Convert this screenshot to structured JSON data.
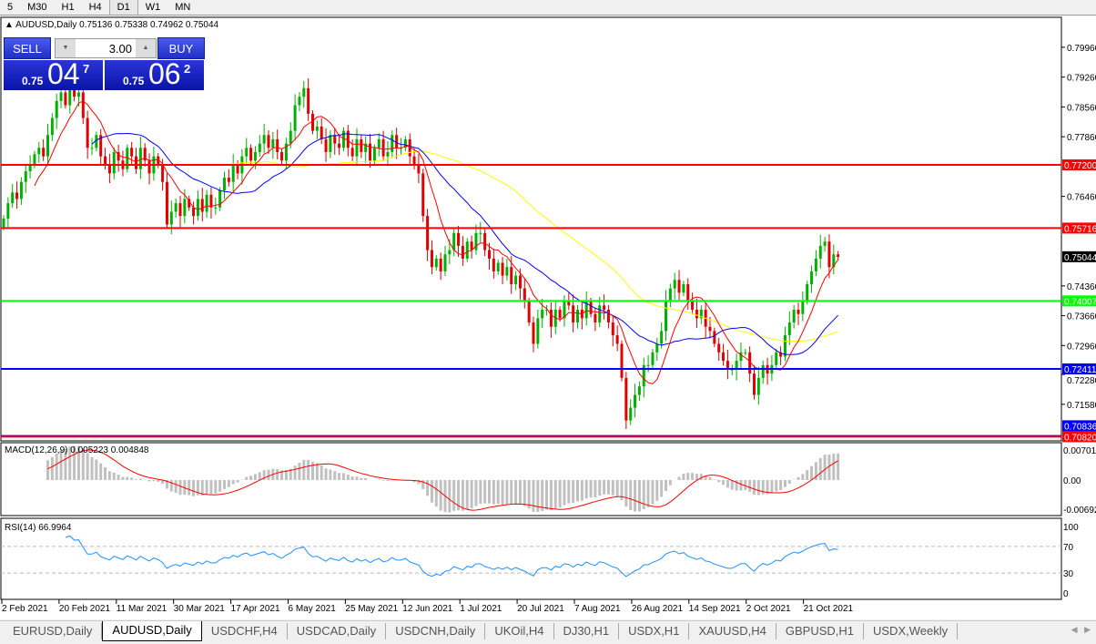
{
  "timeframes": [
    "5",
    "M30",
    "H1",
    "H4",
    "D1",
    "W1",
    "MN"
  ],
  "selected_timeframe": "D1",
  "chart_header": {
    "symbol_title": "AUDUSD,Daily",
    "ohlc": "0.75136 0.75338 0.74962 0.75044"
  },
  "trade_panel": {
    "sell_label": "SELL",
    "buy_label": "BUY",
    "lot": "3.00",
    "sell": {
      "small": "0.75",
      "big": "04",
      "pip": "7"
    },
    "buy": {
      "small": "0.75",
      "big": "06",
      "pip": "2"
    }
  },
  "indicators": {
    "macd_label": "MACD(12,26,9) 0.005223 0.004848",
    "rsi_label": "RSI(14) 66.9964"
  },
  "tabs": [
    "EURUSD,Daily",
    "AUDUSD,Daily",
    "USDCHF,H4",
    "USDCAD,Daily",
    "USDCNH,Daily",
    "UKOil,H4",
    "DJ30,H1",
    "USDX,H1",
    "XAUUSD,H4",
    "GBPUSD,H1",
    "USDX,Weekly"
  ],
  "active_tab": "AUDUSD,Daily",
  "colors": {
    "bull": "#00b000",
    "bear": "#e00000",
    "ma_fast": "#ff0000",
    "ma_mid": "#0000ff",
    "ma_slow": "#ffff00",
    "macd_hist": "#c0c0c0",
    "macd_signal": "#ff0000",
    "rsi": "#1e90ff"
  },
  "chart_data": {
    "type": "candlestick",
    "symbol": "AUDUSD",
    "timeframe": "Daily",
    "y_ticks": [
      "0.79960",
      "0.79260",
      "0.78560",
      "0.77860",
      "0.76460",
      "0.74360",
      "0.73660",
      "0.72960",
      "0.72280",
      "0.71580"
    ],
    "x_ticks": [
      "2 Feb 2021",
      "20 Feb 2021",
      "11 Mar 2021",
      "30 Mar 2021",
      "17 Apr 2021",
      "6 May 2021",
      "25 May 2021",
      "12 Jun 2021",
      "1 Jul 2021",
      "20 Jul 2021",
      "7 Aug 2021",
      "26 Aug 2021",
      "14 Sep 2021",
      "2 Oct 2021",
      "21 Oct 2021"
    ],
    "current_price": "0.75044",
    "hlines": [
      {
        "price": "0.77200",
        "color": "#ff0000"
      },
      {
        "price": "0.75716",
        "color": "#ff0000"
      },
      {
        "price": "0.74007",
        "color": "#00ff00"
      },
      {
        "price": "0.72411",
        "color": "#0000ff"
      },
      {
        "price": "0.70836",
        "color": "#0000ff"
      },
      {
        "price": "0.70820",
        "color": "#ff0000"
      }
    ],
    "closes": [
      0.7594,
      0.763,
      0.7655,
      0.764,
      0.768,
      0.7705,
      0.772,
      0.7745,
      0.776,
      0.774,
      0.779,
      0.783,
      0.787,
      0.789,
      0.786,
      0.791,
      0.788,
      0.789,
      0.783,
      0.776,
      0.776,
      0.779,
      0.774,
      0.772,
      0.77,
      0.775,
      0.773,
      0.771,
      0.776,
      0.774,
      0.771,
      0.776,
      0.773,
      0.77,
      0.774,
      0.772,
      0.768,
      0.758,
      0.761,
      0.763,
      0.76,
      0.764,
      0.762,
      0.76,
      0.764,
      0.761,
      0.765,
      0.762,
      0.762,
      0.766,
      0.769,
      0.768,
      0.772,
      0.77,
      0.774,
      0.776,
      0.773,
      0.775,
      0.777,
      0.779,
      0.776,
      0.778,
      0.775,
      0.773,
      0.777,
      0.78,
      0.786,
      0.788,
      0.79,
      0.784,
      0.78,
      0.781,
      0.778,
      0.775,
      0.779,
      0.777,
      0.776,
      0.78,
      0.776,
      0.774,
      0.778,
      0.775,
      0.777,
      0.773,
      0.776,
      0.778,
      0.774,
      0.775,
      0.779,
      0.776,
      0.776,
      0.778,
      0.774,
      0.772,
      0.77,
      0.76,
      0.752,
      0.748,
      0.75,
      0.747,
      0.751,
      0.752,
      0.756,
      0.753,
      0.75,
      0.754,
      0.752,
      0.756,
      0.756,
      0.752,
      0.75,
      0.747,
      0.749,
      0.746,
      0.748,
      0.744,
      0.746,
      0.743,
      0.74,
      0.735,
      0.73,
      0.736,
      0.738,
      0.738,
      0.734,
      0.738,
      0.736,
      0.74,
      0.739,
      0.735,
      0.738,
      0.736,
      0.74,
      0.737,
      0.735,
      0.739,
      0.738,
      0.735,
      0.732,
      0.73,
      0.722,
      0.712,
      0.715,
      0.718,
      0.72,
      0.725,
      0.725,
      0.728,
      0.73,
      0.733,
      0.74,
      0.743,
      0.745,
      0.742,
      0.744,
      0.74,
      0.738,
      0.736,
      0.738,
      0.734,
      0.733,
      0.73,
      0.728,
      0.726,
      0.724,
      0.724,
      0.726,
      0.728,
      0.728,
      0.723,
      0.718,
      0.722,
      0.725,
      0.723,
      0.725,
      0.728,
      0.727,
      0.732,
      0.735,
      0.738,
      0.737,
      0.74,
      0.744,
      0.747,
      0.75,
      0.753,
      0.754,
      0.748,
      0.751,
      0.7504
    ],
    "macd_ticks": [
      "0.007015",
      "0.00",
      "-0.00692"
    ],
    "rsi_ticks": [
      "100",
      "70",
      "30",
      "0"
    ]
  }
}
